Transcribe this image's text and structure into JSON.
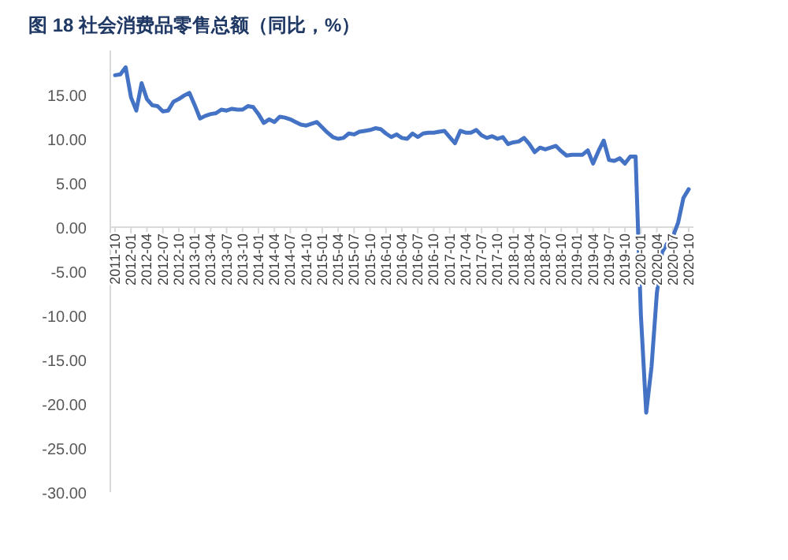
{
  "chart_data": {
    "type": "line",
    "title": "图 18 社会消费品零售总额（同比，%）",
    "categories": [
      "2011-10",
      null,
      null,
      "2012-01",
      null,
      null,
      "2012-04",
      null,
      null,
      "2012-07",
      null,
      null,
      "2012-10",
      null,
      null,
      "2013-01",
      null,
      null,
      "2013-04",
      null,
      null,
      "2013-07",
      null,
      null,
      "2013-10",
      null,
      null,
      "2014-01",
      null,
      null,
      "2014-04",
      null,
      null,
      "2014-07",
      null,
      null,
      "2014-10",
      null,
      null,
      "2015-01",
      null,
      null,
      "2015-04",
      null,
      null,
      "2015-07",
      null,
      null,
      "2015-10",
      null,
      null,
      "2016-01",
      null,
      null,
      "2016-04",
      null,
      null,
      "2016-07",
      null,
      null,
      "2016-10",
      null,
      null,
      "2017-01",
      null,
      null,
      "2017-04",
      null,
      null,
      "2017-07",
      null,
      null,
      "2017-10",
      null,
      null,
      "2018-01",
      null,
      null,
      "2018-04",
      null,
      null,
      "2018-07",
      null,
      null,
      "2018-10",
      null,
      null,
      "2019-01",
      null,
      null,
      "2019-04",
      null,
      null,
      "2019-07",
      null,
      null,
      "2019-10",
      null,
      null,
      "2020-01",
      null,
      null,
      "2020-04",
      null,
      null,
      "2020-07",
      null,
      null,
      "2020-10"
    ],
    "series": [
      {
        "color": "#4472c4",
        "values": [
          17.2,
          17.3,
          18.1,
          14.7,
          13.2,
          16.3,
          14.5,
          13.8,
          13.7,
          13.1,
          13.2,
          14.2,
          14.5,
          14.9,
          15.2,
          13.8,
          12.3,
          12.6,
          12.8,
          12.9,
          13.3,
          13.2,
          13.4,
          13.3,
          13.3,
          13.7,
          13.6,
          12.8,
          11.8,
          12.2,
          11.9,
          12.5,
          12.4,
          12.2,
          11.9,
          11.6,
          11.5,
          11.7,
          11.9,
          11.3,
          10.7,
          10.2,
          10.0,
          10.1,
          10.6,
          10.5,
          10.8,
          10.9,
          11.0,
          11.2,
          11.1,
          10.6,
          10.2,
          10.5,
          10.1,
          10.0,
          10.6,
          10.2,
          10.6,
          10.7,
          10.7,
          10.8,
          10.9,
          10.2,
          9.5,
          10.9,
          10.7,
          10.7,
          11.0,
          10.4,
          10.1,
          10.3,
          10.0,
          10.2,
          9.4,
          9.6,
          9.7,
          10.1,
          9.4,
          8.5,
          9.0,
          8.8,
          9.0,
          9.2,
          8.6,
          8.1,
          8.2,
          8.2,
          8.2,
          8.7,
          7.2,
          8.6,
          9.8,
          7.6,
          7.5,
          7.8,
          7.2,
          8.0,
          8.0,
          -10.0,
          -21.0,
          -15.8,
          -7.5,
          -2.8,
          -1.8,
          -1.1,
          0.5,
          3.3,
          4.3
        ]
      }
    ],
    "ylim": [
      -30,
      20
    ],
    "yticks": [
      {
        "value": -30,
        "label": "-30.00"
      },
      {
        "value": -25,
        "label": "-25.00"
      },
      {
        "value": -20,
        "label": "-20.00"
      },
      {
        "value": -15,
        "label": "-15.00"
      },
      {
        "value": -10,
        "label": "-10.00"
      },
      {
        "value": -5,
        "label": "-5.00"
      },
      {
        "value": 0,
        "label": "0.00"
      },
      {
        "value": 5,
        "label": "5.00"
      },
      {
        "value": 10,
        "label": "10.00"
      },
      {
        "value": 15,
        "label": "15.00"
      }
    ],
    "grid": false,
    "marker": "none",
    "line_style": "solid"
  }
}
